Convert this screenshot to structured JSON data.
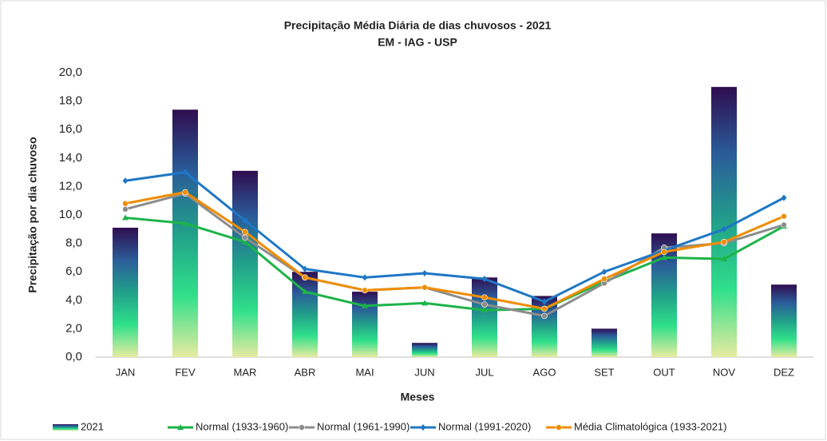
{
  "chart_data": {
    "type": "bar-line",
    "title": "Precipitação Média Diária de dias chuvosos - 2021",
    "subtitle": "EM - IAG - USP",
    "y_label": "Precipitação por dia chuvoso",
    "x_label": "Meses",
    "categories": [
      "JAN",
      "FEV",
      "MAR",
      "ABR",
      "MAI",
      "JUN",
      "JUL",
      "AGO",
      "SET",
      "OUT",
      "NOV",
      "DEZ"
    ],
    "ylim": [
      0,
      20
    ],
    "yticks": [
      {
        "value": 0,
        "label": "0,0"
      },
      {
        "value": 2,
        "label": "2,0"
      },
      {
        "value": 4,
        "label": "4,0"
      },
      {
        "value": 6,
        "label": "6,0"
      },
      {
        "value": 8,
        "label": "8,0"
      },
      {
        "value": 10,
        "label": "10,0"
      },
      {
        "value": 12,
        "label": "12,0"
      },
      {
        "value": 14,
        "label": "14,0"
      },
      {
        "value": 16,
        "label": "16,0"
      },
      {
        "value": 18,
        "label": "18,0"
      },
      {
        "value": 20,
        "label": "20,0"
      }
    ],
    "grid": false,
    "legend": "bottom",
    "series": [
      {
        "name": "2021",
        "type": "bar",
        "colors": [
          "#2f0d4f",
          "#2a5c9a",
          "#21a08a",
          "#2fe08a",
          "#e8eba0"
        ],
        "values": [
          9.1,
          17.4,
          13.1,
          6.0,
          4.6,
          1.0,
          5.6,
          4.3,
          2.0,
          8.7,
          19.0,
          5.1
        ]
      },
      {
        "name": "Normal (1933-1960)",
        "type": "line",
        "color": "#1db34a",
        "marker": "triangle",
        "values": [
          9.8,
          9.4,
          8.1,
          4.6,
          3.6,
          3.8,
          3.3,
          3.4,
          5.3,
          7.0,
          6.9,
          9.2
        ]
      },
      {
        "name": "Normal (1961-1990)",
        "type": "line",
        "color": "#8c8c8c",
        "marker": "circle",
        "values": [
          10.4,
          11.5,
          8.4,
          5.6,
          4.7,
          4.9,
          3.7,
          2.9,
          5.2,
          7.7,
          8.0,
          9.3
        ]
      },
      {
        "name": "Normal (1991-2020)",
        "type": "line",
        "color": "#1f77c4",
        "marker": "diamond",
        "values": [
          12.4,
          13.0,
          9.6,
          6.2,
          5.6,
          5.9,
          5.5,
          3.9,
          6.0,
          7.5,
          9.0,
          11.2
        ]
      },
      {
        "name": "Média Climatológica (1933-2021)",
        "type": "line",
        "color": "#f08c00",
        "marker": "circle",
        "values": [
          10.8,
          11.6,
          8.8,
          5.6,
          4.7,
          4.9,
          4.2,
          3.4,
          5.5,
          7.4,
          8.1,
          9.9
        ]
      }
    ]
  }
}
